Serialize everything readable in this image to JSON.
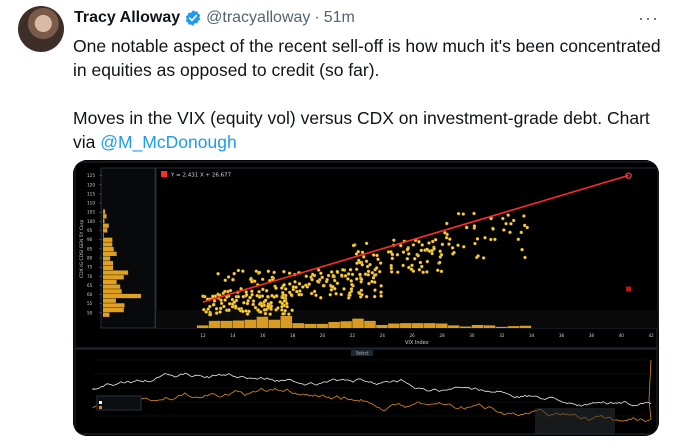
{
  "author": {
    "name": "Tracy Alloway",
    "handle": "@tracyalloway",
    "separator": "·",
    "time": "51m"
  },
  "more_label": "···",
  "tweet": {
    "paragraph1": "One notable aspect of the recent sell-off is how much it's been concentrated in equities as opposed to credit (so far).",
    "paragraph2_text": "Moves in the VIX (equity vol) versus CDX on investment-grade debt. Chart via ",
    "mention": "@M_McDonough"
  },
  "chart": {
    "regression_label": "Y = 2.431 X + 26.677",
    "xlabel": "VIX Index",
    "ylabel": "CDX IG CDSI GEN 5Y Corp",
    "bottom_panel_tab": "Select",
    "accent_point": "#ffd23a",
    "accent_line": "#ff2a2a"
  },
  "chart_data": [
    {
      "type": "scatter",
      "title": "",
      "regression": {
        "slope": 2.431,
        "intercept": 26.677
      },
      "xlabel": "VIX Index",
      "ylabel": "CDX IG CDSI GEN 5Y Corp",
      "xlim": [
        10,
        42
      ],
      "ylim": [
        45,
        127
      ],
      "x_ticks": [
        12,
        14,
        16,
        18,
        20,
        22,
        24,
        26,
        28,
        30,
        32,
        34,
        36,
        38,
        40,
        42
      ],
      "y_ticks": [
        50,
        55,
        60,
        65,
        70,
        75,
        80,
        85,
        90,
        95,
        100,
        105,
        110,
        115,
        120,
        125
      ],
      "highlight_points": [
        [
          40.5,
          125
        ],
        [
          40.5,
          63
        ]
      ],
      "clusters": [
        {
          "x_range": [
            12,
            18
          ],
          "y_range": [
            49,
            60
          ],
          "count": 110
        },
        {
          "x_range": [
            13,
            24
          ],
          "y_range": [
            58,
            74
          ],
          "count": 160
        },
        {
          "x_range": [
            22,
            28
          ],
          "y_range": [
            72,
            90
          ],
          "count": 80
        },
        {
          "x_range": [
            28,
            34
          ],
          "y_range": [
            80,
            105
          ],
          "count": 45
        }
      ],
      "grid": false
    },
    {
      "type": "line",
      "title": "",
      "series": [
        {
          "name": "CDX IG CDSI GEN 5Y Corp",
          "color": "#ffffff"
        },
        {
          "name": "VIX Index",
          "color": "#e08a1e"
        }
      ]
    }
  ]
}
